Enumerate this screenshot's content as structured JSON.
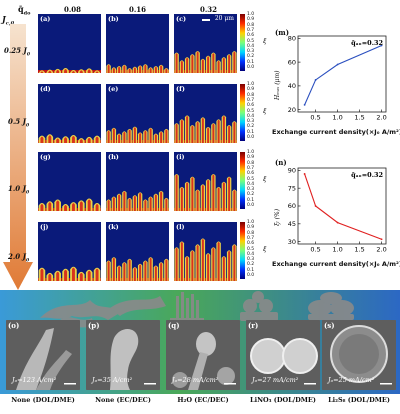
{
  "header": {
    "qlabel": "q̄",
    "qsub": "do",
    "cols": [
      "0.08",
      "0.16",
      "0.32"
    ],
    "jlabel": "J",
    "jsub": "c,0"
  },
  "rows": [
    {
      "label": "0.25 J",
      "sub": "0"
    },
    {
      "label": "0.5 J",
      "sub": "0"
    },
    {
      "label": "1.0 J",
      "sub": "0"
    },
    {
      "label": "2.0 J",
      "sub": "0"
    }
  ],
  "panels": [
    "(a)",
    "(b)",
    "(c)",
    "(d)",
    "(e)",
    "(f)",
    "(g)",
    "(h)",
    "(i)",
    "(j)",
    "(k)",
    "(l)"
  ],
  "scalebar": "20 μm",
  "colorbar": {
    "ticks": [
      "1.0",
      "0.9",
      "0.8",
      "0.7",
      "0.6",
      "0.5",
      "0.4",
      "0.3",
      "0.2",
      "0.1",
      "0.0"
    ],
    "label": "ξ"
  },
  "chart_m": {
    "letter": "(m)",
    "annotation": "q̄ₐₒ=0.32",
    "ylabel": "Hₘₐₓ (μm)",
    "xlabel": "Exchange current density(×J₀ A/m²)",
    "yticks": [
      "80",
      "60",
      "40",
      "20"
    ],
    "xticks": [
      "0.5",
      "1.0",
      "1.5",
      "2.0"
    ]
  },
  "chart_n": {
    "letter": "(n)",
    "annotation": "q̄ₐₒ=0.32",
    "ylabel": "ξₗ (%)",
    "xlabel": "Exchange current density(×J₀ A/m²)",
    "yticks": [
      "90",
      "75",
      "60",
      "45",
      "30"
    ],
    "xticks": [
      "0.5",
      "1.0",
      "1.5",
      "2.0"
    ]
  },
  "chart_data": [
    {
      "type": "line",
      "x": [
        0.25,
        0.5,
        1.0,
        2.0
      ],
      "series": [
        {
          "values": [
            24,
            45,
            58,
            74
          ]
        }
      ],
      "xlabel": "Exchange current density(×J₀ A/m²)",
      "ylabel": "Hₘₐₓ (μm)",
      "xlim": [
        0.1,
        2.1
      ],
      "ylim": [
        18,
        82
      ],
      "color": "#2a4fbf"
    },
    {
      "type": "line",
      "x": [
        0.25,
        0.5,
        1.0,
        2.0
      ],
      "series": [
        {
          "values": [
            87,
            60,
            46,
            32
          ]
        }
      ],
      "xlabel": "Exchange current density(×J₀ A/m²)",
      "ylabel": "ξₗ (%)",
      "xlim": [
        0.1,
        2.1
      ],
      "ylim": [
        28,
        92
      ],
      "color": "#e02020"
    }
  ],
  "micrographs": [
    {
      "letter": "(o)",
      "value": "Jₒ=123 A/cm²",
      "caption": "None (DOL/DME)"
    },
    {
      "letter": "(p)",
      "value": "Jₒ=35 A/cm²",
      "caption": "None (EC/DEC)"
    },
    {
      "letter": "(q)",
      "value": "Jₒ=28 mA/cm²",
      "caption": "H₂O (EC/DEC)"
    },
    {
      "letter": "(r)",
      "value": "Jₒ=27 mA/cm²",
      "caption": "LiNO₃ (DOL/DME)"
    },
    {
      "letter": "(s)",
      "value": "Jₒ=25 mA/cm²",
      "caption": "Li₂S₈ (DOL/DME)"
    }
  ],
  "colors": {
    "panel_bg": "#0a1a7a",
    "arrow_top": "#f4d8b8",
    "arrow_bottom": "#e07830",
    "strip_left": "#4aa0e0",
    "strip_right": "#2f6ec8",
    "strip_green": "#3a9a4a"
  }
}
